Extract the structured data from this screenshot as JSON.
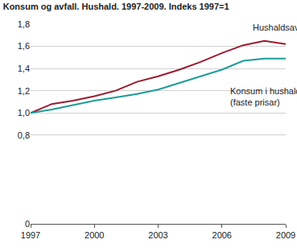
{
  "chart_data": {
    "type": "line",
    "title": "Konsum og avfall. Hushald. 1997-2009. Indeks 1997=1",
    "x": [
      1997,
      1998,
      1999,
      2000,
      2001,
      2002,
      2003,
      2004,
      2005,
      2006,
      2007,
      2008,
      2009
    ],
    "series": [
      {
        "name": "Hushaldsavfall",
        "color": "#9b1b30",
        "values": [
          1.0,
          1.08,
          1.11,
          1.15,
          1.2,
          1.28,
          1.33,
          1.39,
          1.46,
          1.54,
          1.61,
          1.65,
          1.62
        ]
      },
      {
        "name": "Konsum i hushalda\n(faste prisar)",
        "color": "#1a9c97",
        "values": [
          1.0,
          1.03,
          1.07,
          1.11,
          1.14,
          1.17,
          1.21,
          1.27,
          1.33,
          1.39,
          1.47,
          1.49,
          1.49
        ]
      }
    ],
    "xlim": [
      1997,
      2009
    ],
    "xticks": [
      1997,
      2000,
      2003,
      2006,
      2009
    ],
    "ylim": [
      0,
      1.8
    ],
    "yticks": [
      0,
      {
        "value": 0.8,
        "label": "0,8"
      },
      {
        "value": 1.0,
        "label": "1,0"
      },
      {
        "value": 1.2,
        "label": "1,2"
      },
      {
        "value": 1.4,
        "label": "1,4"
      },
      {
        "value": 1.6,
        "label": "1,6"
      },
      {
        "value": 1.8,
        "label": "1,8"
      }
    ],
    "grid": true
  }
}
